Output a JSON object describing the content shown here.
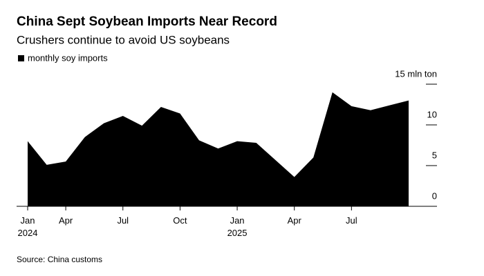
{
  "chart_data": {
    "type": "area",
    "title": "China Sept Soybean Imports Near Record",
    "subtitle": "Crushers continue to avoid US soybeans",
    "source": "Source: China customs",
    "color": "#000000",
    "categories": [
      "Jan 2024",
      null,
      "Apr",
      null,
      null,
      "Jul",
      null,
      null,
      "Oct",
      null,
      null,
      "Jan 2025",
      null,
      null,
      "Apr",
      null,
      null,
      "Jul",
      null,
      null,
      null
    ],
    "series": [
      {
        "name": "monthly soy imports",
        "color": "#000000",
        "values": [
          8.0,
          5.1,
          5.5,
          8.5,
          10.2,
          11.1,
          9.9,
          12.2,
          11.4,
          8.1,
          7.1,
          8.0,
          7.8,
          5.7,
          3.6,
          6.0,
          14.0,
          12.3,
          11.8,
          12.4,
          13.0
        ]
      }
    ],
    "ylim": [
      0,
      15
    ],
    "yticks": [
      0,
      5,
      10,
      {
        "value": 15,
        "label": "15 mln ton"
      }
    ]
  }
}
